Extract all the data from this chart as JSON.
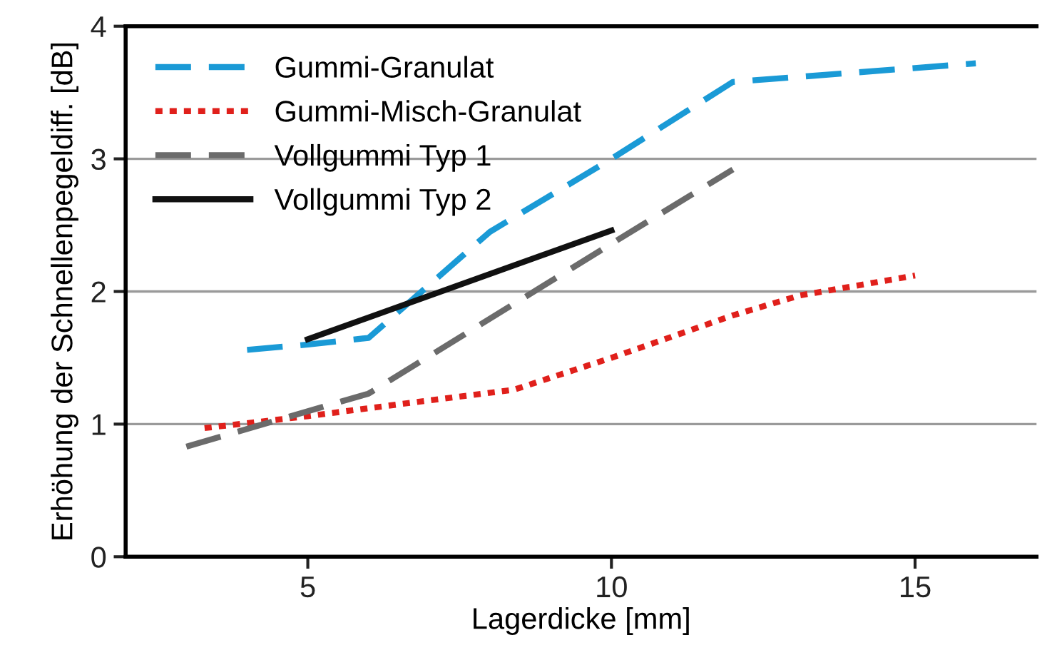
{
  "chart_data": {
    "type": "line",
    "xlabel": "Lagerdicke [mm]",
    "ylabel": "Erhöhung der Schnellenpegeldiff. [dB]",
    "xlim": [
      2,
      17
    ],
    "xticks": [
      5,
      10,
      15
    ],
    "ylim": [
      0,
      4
    ],
    "yticks": [
      0,
      1,
      2,
      3,
      4
    ],
    "grid": "y",
    "legend": "top left",
    "marker": "none",
    "series": [
      {
        "name": "Gummi-Granulat",
        "color": "#1a9ad6",
        "line_style": "dashed",
        "x": [
          4,
          5,
          6,
          8,
          10,
          12,
          16
        ],
        "values": [
          1.56,
          1.6,
          1.65,
          2.45,
          3.0,
          3.58,
          3.72
        ]
      },
      {
        "name": "Gummi-Misch-Granulat",
        "color": "#e0201b",
        "line_style": "dotted",
        "x": [
          3.3,
          5,
          6,
          8.4,
          10,
          12,
          13.1,
          15
        ],
        "values": [
          0.97,
          1.06,
          1.12,
          1.26,
          1.5,
          1.82,
          1.97,
          2.12
        ]
      },
      {
        "name": "Vollgummi Typ 1",
        "color": "#6b6b6b",
        "line_style": "dashed",
        "x": [
          3,
          6,
          10,
          12
        ],
        "values": [
          0.83,
          1.23,
          2.36,
          2.92
        ]
      },
      {
        "name": "Vollgummi Typ 2",
        "color": "#111111",
        "line_style": "solid",
        "x": [
          5,
          10
        ],
        "values": [
          1.64,
          2.46
        ]
      }
    ]
  }
}
